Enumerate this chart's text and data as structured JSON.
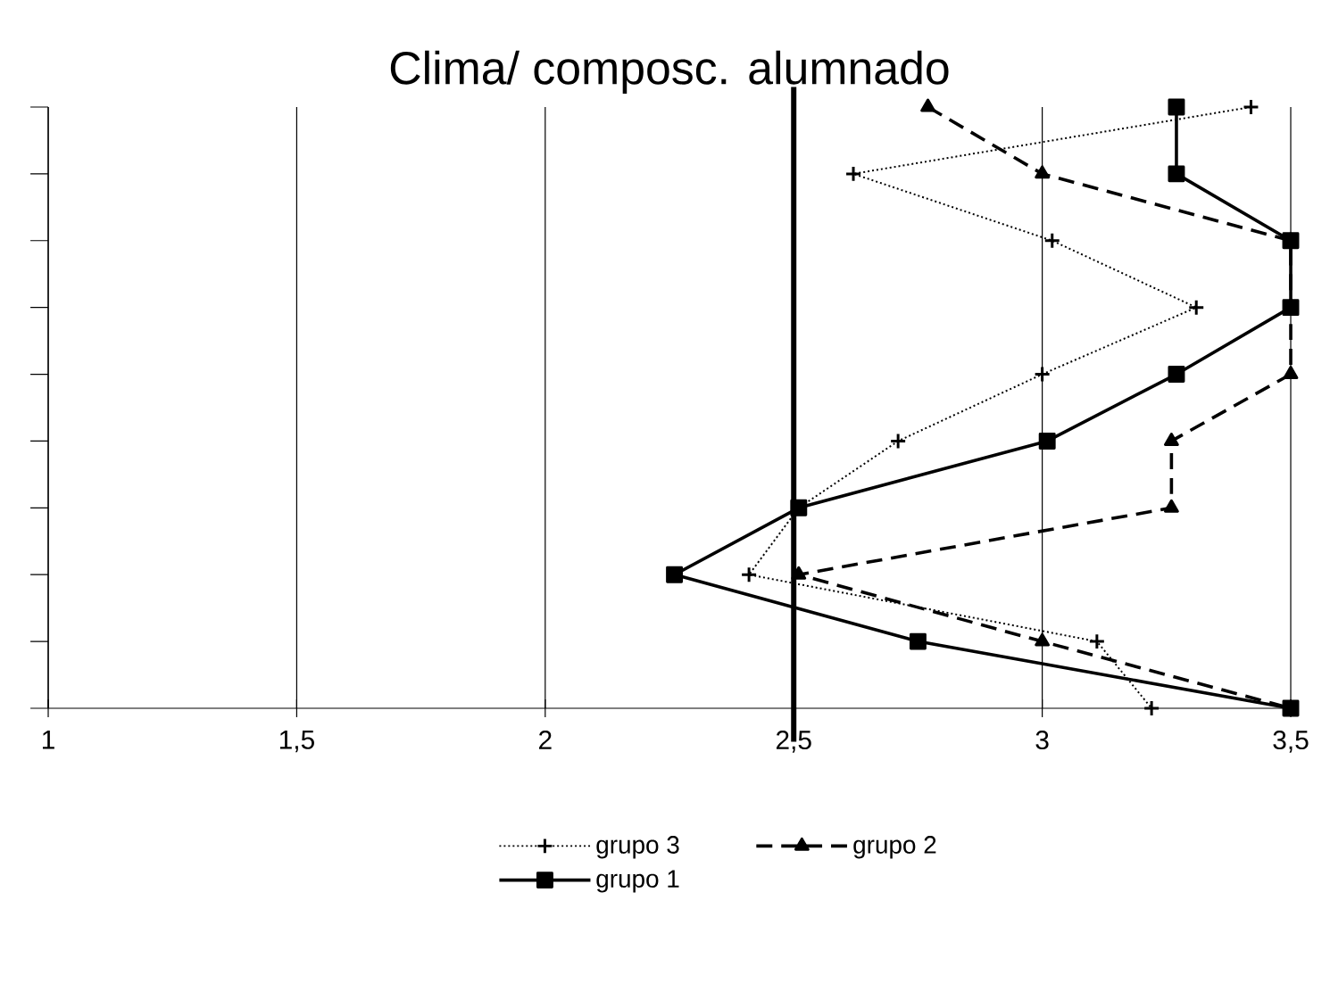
{
  "chart_data": {
    "type": "line",
    "title": "Clima/ composc. alumnado",
    "orientation": "horizontal",
    "categories": [
      null,
      null,
      null,
      null,
      null,
      null,
      null,
      null,
      null,
      null
    ],
    "series": [
      {
        "name": "grupo 3",
        "color": "#000000",
        "marker": "cross",
        "line_style": "dotted",
        "values": [
          3.42,
          2.62,
          3.02,
          3.31,
          3.0,
          2.71,
          2.51,
          2.41,
          3.11,
          3.22
        ]
      },
      {
        "name": "grupo 2",
        "color": "#000000",
        "marker": "triangle",
        "line_style": "dashed",
        "values": [
          2.77,
          3.0,
          3.5,
          3.5,
          3.5,
          3.26,
          3.26,
          2.51,
          3.0,
          3.5
        ]
      },
      {
        "name": "grupo 1",
        "color": "#000000",
        "marker": "square",
        "line_style": "solid",
        "values": [
          3.27,
          3.27,
          3.5,
          3.5,
          3.27,
          3.01,
          2.51,
          2.26,
          2.75,
          3.5
        ]
      }
    ],
    "xlim": [
      1,
      3.5
    ],
    "xticks": [
      1,
      {
        "value": 1.5,
        "label": "1,5"
      },
      2,
      {
        "value": 2.5,
        "label": "2,5"
      },
      3,
      {
        "value": 3.5,
        "label": "3,5"
      }
    ],
    "ref_lines": [
      {
        "axis": "x",
        "value": 2.5,
        "color": "#000000"
      }
    ],
    "grid": "x",
    "legend": "bottom",
    "tick_labels": "x"
  }
}
